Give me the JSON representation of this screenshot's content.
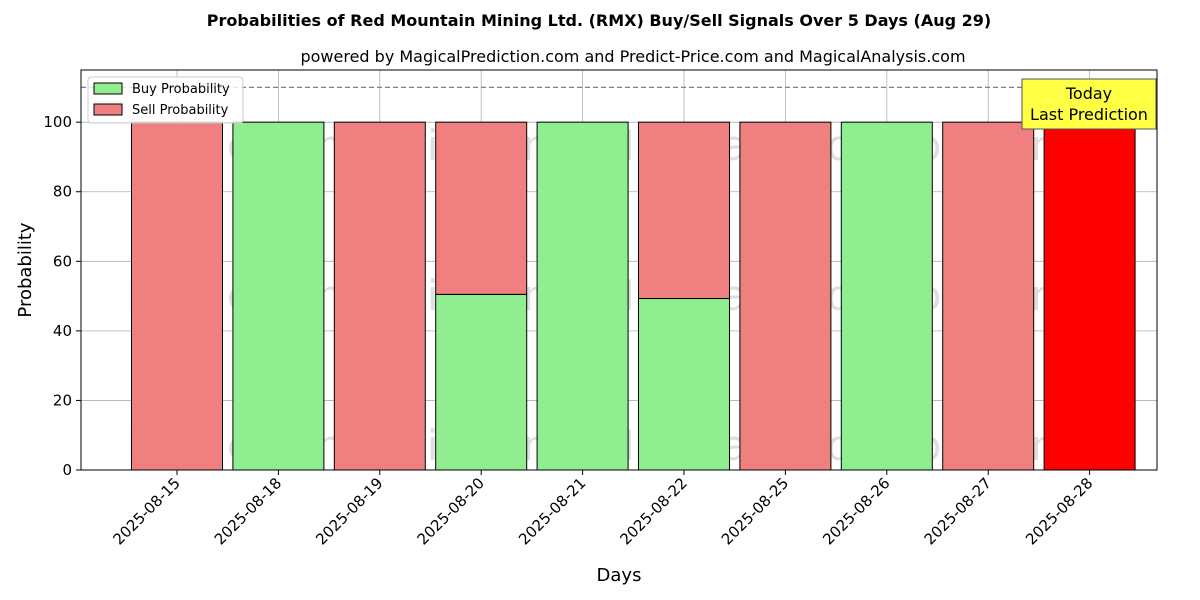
{
  "chart_data": {
    "type": "bar",
    "title": "Probabilities of Red Mountain Mining Ltd. (RMX) Buy/Sell Signals Over 5 Days (Aug 29)",
    "subtitle": "powered by MagicalPrediction.com and Predict-Price.com and MagicalAnalysis.com",
    "xlabel": "Days",
    "ylabel": "Probability",
    "ylim": [
      0,
      115
    ],
    "yticks": [
      0,
      20,
      40,
      60,
      80,
      100
    ],
    "grid": true,
    "legend_position": "top-left",
    "reference_line": 110,
    "categories": [
      "2025-08-15",
      "2025-08-18",
      "2025-08-19",
      "2025-08-20",
      "2025-08-21",
      "2025-08-22",
      "2025-08-25",
      "2025-08-26",
      "2025-08-27",
      "2025-08-28"
    ],
    "series": [
      {
        "name": "Buy Probability",
        "color": "#90ee90",
        "values": [
          0,
          100,
          0,
          50.5,
          100,
          49.3,
          0,
          100,
          0,
          0
        ]
      },
      {
        "name": "Sell Probability",
        "color": "#f08080",
        "values": [
          100,
          0,
          100,
          49.5,
          0,
          50.7,
          100,
          0,
          100,
          100
        ]
      }
    ],
    "highlight": {
      "index": 9,
      "color": "#ff0000"
    },
    "annotation": {
      "line1": "Today",
      "line2": "Last Prediction",
      "color": "#ffff44"
    },
    "watermarks": [
      "MagicalAnalysis.com",
      "MagicalPrediction.com"
    ]
  }
}
